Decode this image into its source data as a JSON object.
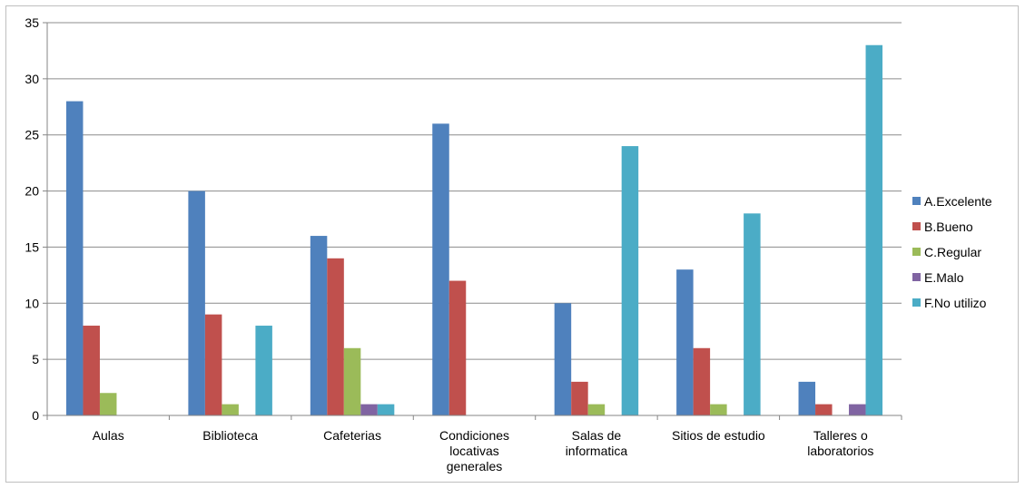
{
  "chart_data": {
    "type": "bar",
    "categories": [
      [
        "Aulas"
      ],
      [
        "Biblioteca"
      ],
      [
        "Cafeterias"
      ],
      [
        "Condiciones",
        "locativas",
        "generales"
      ],
      [
        "Salas de",
        "informatica"
      ],
      [
        "Sitios de estudio"
      ],
      [
        "Talleres  o",
        "laboratorios"
      ]
    ],
    "series": [
      {
        "name": "A.Excelente",
        "color": "#4f81bd",
        "values": [
          28,
          20,
          16,
          26,
          10,
          13,
          3
        ]
      },
      {
        "name": "B.Bueno",
        "color": "#c0504d",
        "values": [
          8,
          9,
          14,
          12,
          3,
          6,
          1
        ]
      },
      {
        "name": "C.Regular",
        "color": "#9bbb59",
        "values": [
          2,
          1,
          6,
          0,
          1,
          1,
          0
        ]
      },
      {
        "name": "E.Malo",
        "color": "#8064a2",
        "values": [
          0,
          0,
          1,
          0,
          0,
          0,
          1
        ]
      },
      {
        "name": "F.No utilizo",
        "color": "#4bacc6",
        "values": [
          0,
          8,
          1,
          0,
          24,
          18,
          33
        ]
      }
    ],
    "ylim": [
      0,
      35
    ],
    "yticks": [
      0,
      5,
      10,
      15,
      20,
      25,
      30,
      35
    ],
    "grid": true,
    "legend": "right",
    "title": "",
    "xlabel": "",
    "ylabel": ""
  }
}
